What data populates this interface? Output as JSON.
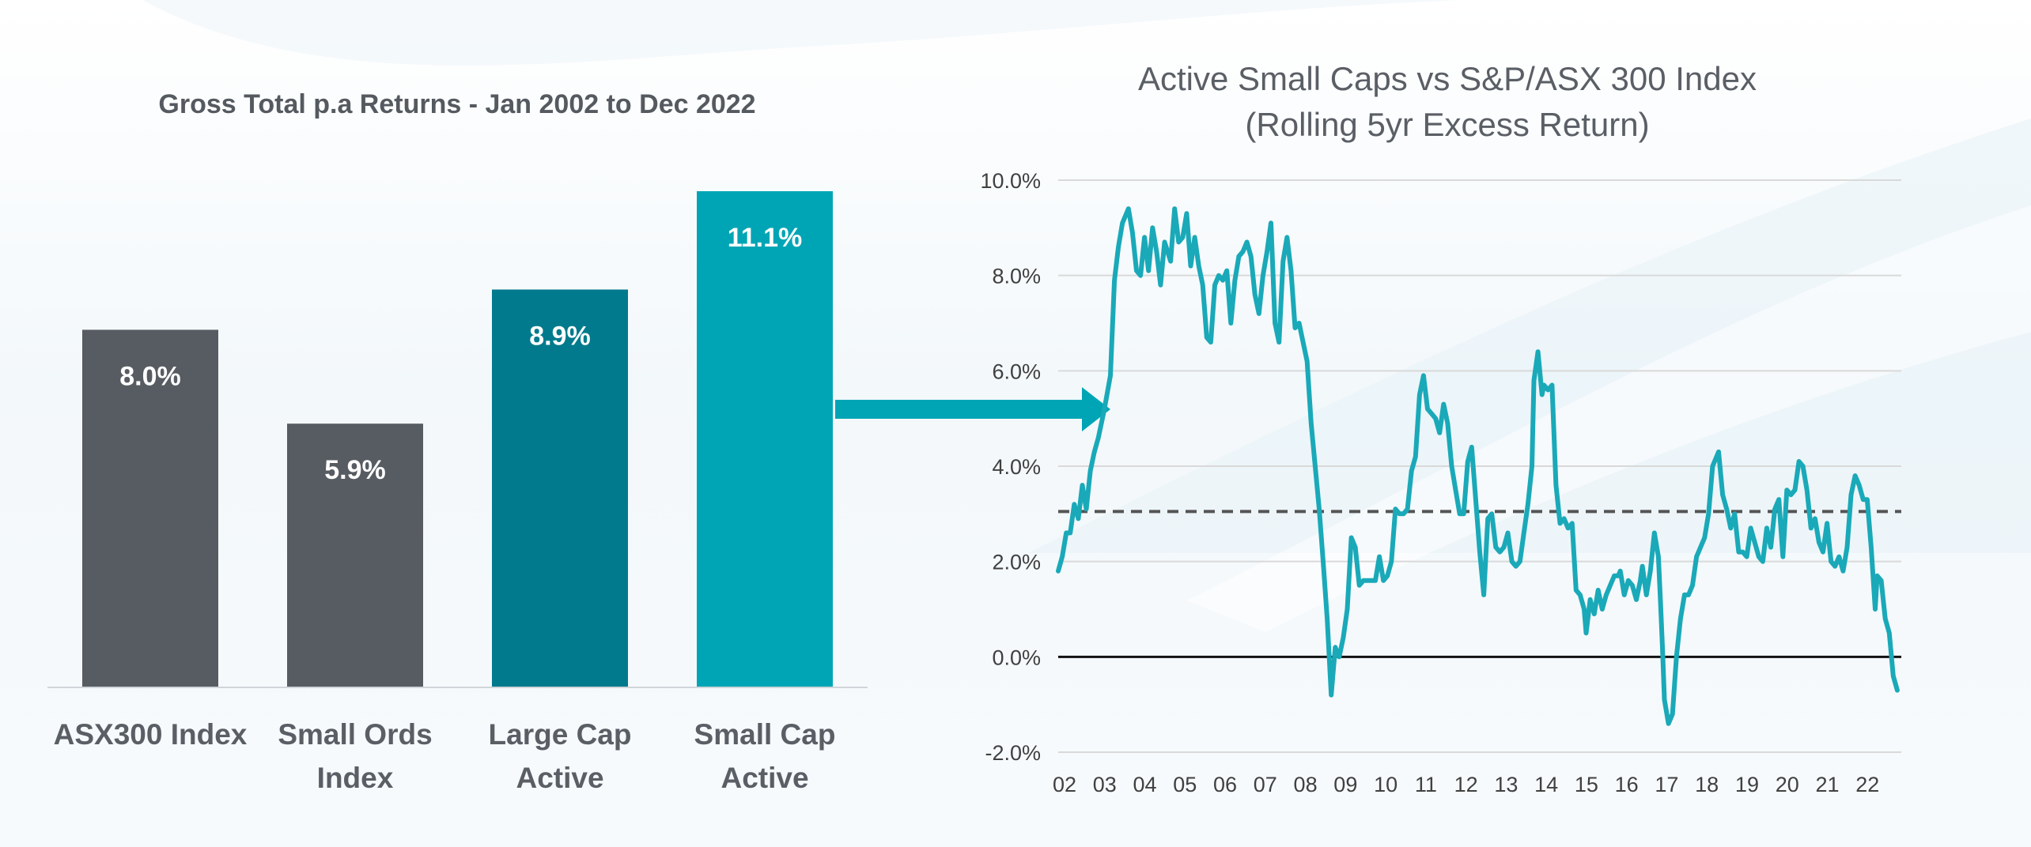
{
  "left_chart": {
    "title": "Gross Total p.a Returns - Jan 2002 to Dec 2022"
  },
  "right_chart": {
    "title_line1": "Active Small Caps vs S&P/ASX 300 Index",
    "title_line2": "(Rolling 5yr Excess Return)"
  },
  "colors": {
    "dark_grey": "#575b62",
    "dark_teal": "#007a8c",
    "teal": "#00a5b5",
    "line": "#1aa9b8",
    "dashed": "#555555",
    "axis_text": "#404040"
  },
  "chart_data": [
    {
      "type": "bar",
      "title": "Gross Total p.a Returns - Jan 2002 to Dec 2022",
      "categories": [
        [
          "ASX300 Index"
        ],
        [
          "Small Ords",
          "Index"
        ],
        [
          "Large Cap",
          "Active"
        ],
        [
          "Small Cap",
          "Active"
        ]
      ],
      "values": [
        8.0,
        5.9,
        8.9,
        11.1
      ],
      "labels": [
        "8.0%",
        "5.9%",
        "8.9%",
        "11.1%"
      ],
      "bar_colors": [
        "#575b62",
        "#575b62",
        "#007a8c",
        "#00a5b5"
      ],
      "ylim": [
        0,
        11.1
      ]
    },
    {
      "type": "line",
      "title": "Active Small Caps vs S&P/ASX 300 Index (Rolling 5yr Excess Return)",
      "x_ticks": [
        "02",
        "03",
        "04",
        "05",
        "06",
        "07",
        "08",
        "09",
        "10",
        "11",
        "12",
        "13",
        "14",
        "15",
        "16",
        "17",
        "18",
        "19",
        "20",
        "21",
        "22"
      ],
      "y_ticks": [
        -2,
        0,
        2,
        4,
        6,
        8,
        10
      ],
      "y_tick_labels": [
        "-2.0%",
        "0.0%",
        "2.0%",
        "4.0%",
        "6.0%",
        "8.0%",
        "10.0%"
      ],
      "ylim": [
        -2,
        10
      ],
      "xlim": [
        2002,
        2023
      ],
      "average_line": 3.05,
      "zero_line": 0,
      "grid": true,
      "series": [
        {
          "values": [
            [
              2002.0,
              1.8
            ],
            [
              2002.1,
              2.1
            ],
            [
              2002.2,
              2.6
            ],
            [
              2002.3,
              2.6
            ],
            [
              2002.4,
              3.2
            ],
            [
              2002.5,
              2.9
            ],
            [
              2002.6,
              3.6
            ],
            [
              2002.7,
              3.1
            ],
            [
              2002.8,
              3.9
            ],
            [
              2002.9,
              4.3
            ],
            [
              2003.0,
              4.6
            ],
            [
              2003.15,
              5.2
            ],
            [
              2003.3,
              5.9
            ],
            [
              2003.4,
              7.9
            ],
            [
              2003.5,
              8.6
            ],
            [
              2003.6,
              9.1
            ],
            [
              2003.75,
              9.4
            ],
            [
              2003.85,
              8.9
            ],
            [
              2003.95,
              8.1
            ],
            [
              2004.05,
              8.0
            ],
            [
              2004.15,
              8.8
            ],
            [
              2004.25,
              8.1
            ],
            [
              2004.35,
              9.0
            ],
            [
              2004.45,
              8.5
            ],
            [
              2004.55,
              7.8
            ],
            [
              2004.65,
              8.7
            ],
            [
              2004.8,
              8.3
            ],
            [
              2004.9,
              9.4
            ],
            [
              2005.0,
              8.7
            ],
            [
              2005.1,
              8.8
            ],
            [
              2005.2,
              9.3
            ],
            [
              2005.3,
              8.2
            ],
            [
              2005.4,
              8.8
            ],
            [
              2005.5,
              8.2
            ],
            [
              2005.6,
              7.8
            ],
            [
              2005.7,
              6.7
            ],
            [
              2005.8,
              6.6
            ],
            [
              2005.9,
              7.8
            ],
            [
              2006.0,
              8.0
            ],
            [
              2006.1,
              7.9
            ],
            [
              2006.2,
              8.1
            ],
            [
              2006.3,
              7.0
            ],
            [
              2006.4,
              7.9
            ],
            [
              2006.5,
              8.4
            ],
            [
              2006.6,
              8.5
            ],
            [
              2006.7,
              8.7
            ],
            [
              2006.8,
              8.4
            ],
            [
              2006.9,
              7.6
            ],
            [
              2007.0,
              7.2
            ],
            [
              2007.1,
              8.0
            ],
            [
              2007.2,
              8.5
            ],
            [
              2007.3,
              9.1
            ],
            [
              2007.4,
              7.0
            ],
            [
              2007.5,
              6.6
            ],
            [
              2007.6,
              8.3
            ],
            [
              2007.7,
              8.8
            ],
            [
              2007.8,
              8.1
            ],
            [
              2007.9,
              6.9
            ],
            [
              2008.0,
              7.0
            ],
            [
              2008.1,
              6.6
            ],
            [
              2008.2,
              6.2
            ],
            [
              2008.3,
              4.9
            ],
            [
              2008.4,
              4.0
            ],
            [
              2008.5,
              3.1
            ],
            [
              2008.6,
              2.0
            ],
            [
              2008.7,
              0.8
            ],
            [
              2008.8,
              -0.8
            ],
            [
              2008.9,
              0.2
            ],
            [
              2009.0,
              0.0
            ],
            [
              2009.1,
              0.4
            ],
            [
              2009.2,
              1.0
            ],
            [
              2009.3,
              2.5
            ],
            [
              2009.4,
              2.3
            ],
            [
              2009.5,
              1.5
            ],
            [
              2009.6,
              1.6
            ],
            [
              2009.7,
              1.6
            ],
            [
              2009.8,
              1.6
            ],
            [
              2009.9,
              1.6
            ],
            [
              2010.0,
              2.1
            ],
            [
              2010.1,
              1.6
            ],
            [
              2010.2,
              1.7
            ],
            [
              2010.3,
              2.0
            ],
            [
              2010.4,
              3.1
            ],
            [
              2010.5,
              3.0
            ],
            [
              2010.6,
              3.0
            ],
            [
              2010.7,
              3.1
            ],
            [
              2010.8,
              3.9
            ],
            [
              2010.9,
              4.2
            ],
            [
              2011.0,
              5.5
            ],
            [
              2011.1,
              5.9
            ],
            [
              2011.2,
              5.2
            ],
            [
              2011.3,
              5.1
            ],
            [
              2011.4,
              5.0
            ],
            [
              2011.5,
              4.7
            ],
            [
              2011.6,
              5.3
            ],
            [
              2011.7,
              4.9
            ],
            [
              2011.8,
              4.0
            ],
            [
              2011.9,
              3.5
            ],
            [
              2012.0,
              3.0
            ],
            [
              2012.1,
              3.0
            ],
            [
              2012.2,
              4.1
            ],
            [
              2012.3,
              4.4
            ],
            [
              2012.4,
              3.3
            ],
            [
              2012.5,
              2.2
            ],
            [
              2012.6,
              1.3
            ],
            [
              2012.7,
              2.9
            ],
            [
              2012.8,
              3.0
            ],
            [
              2012.9,
              2.3
            ],
            [
              2013.0,
              2.2
            ],
            [
              2013.1,
              2.3
            ],
            [
              2013.2,
              2.6
            ],
            [
              2013.3,
              2.0
            ],
            [
              2013.4,
              1.9
            ],
            [
              2013.5,
              2.0
            ],
            [
              2013.6,
              2.6
            ],
            [
              2013.7,
              3.2
            ],
            [
              2013.8,
              4.0
            ],
            [
              2013.85,
              5.8
            ],
            [
              2013.95,
              6.4
            ],
            [
              2014.05,
              5.5
            ],
            [
              2014.1,
              5.7
            ],
            [
              2014.2,
              5.6
            ],
            [
              2014.3,
              5.7
            ],
            [
              2014.4,
              3.6
            ],
            [
              2014.5,
              2.8
            ],
            [
              2014.6,
              2.9
            ],
            [
              2014.7,
              2.7
            ],
            [
              2014.8,
              2.8
            ],
            [
              2014.9,
              1.4
            ],
            [
              2015.0,
              1.3
            ],
            [
              2015.1,
              1.0
            ],
            [
              2015.15,
              0.5
            ],
            [
              2015.25,
              1.2
            ],
            [
              2015.35,
              0.9
            ],
            [
              2015.45,
              1.4
            ],
            [
              2015.55,
              1.0
            ],
            [
              2015.65,
              1.3
            ],
            [
              2015.75,
              1.5
            ],
            [
              2015.85,
              1.7
            ],
            [
              2015.95,
              1.7
            ],
            [
              2016.0,
              1.8
            ],
            [
              2016.1,
              1.3
            ],
            [
              2016.2,
              1.6
            ],
            [
              2016.3,
              1.5
            ],
            [
              2016.4,
              1.2
            ],
            [
              2016.5,
              1.6
            ],
            [
              2016.55,
              1.9
            ],
            [
              2016.65,
              1.3
            ],
            [
              2016.75,
              1.8
            ],
            [
              2016.85,
              2.6
            ],
            [
              2016.95,
              2.1
            ],
            [
              2017.0,
              1.2
            ],
            [
              2017.05,
              0.2
            ],
            [
              2017.1,
              -0.9
            ],
            [
              2017.2,
              -1.4
            ],
            [
              2017.3,
              -1.2
            ],
            [
              2017.4,
              0.0
            ],
            [
              2017.5,
              0.8
            ],
            [
              2017.6,
              1.3
            ],
            [
              2017.7,
              1.3
            ],
            [
              2017.8,
              1.5
            ],
            [
              2017.9,
              2.1
            ],
            [
              2018.0,
              2.3
            ],
            [
              2018.1,
              2.5
            ],
            [
              2018.2,
              3.0
            ],
            [
              2018.3,
              4.0
            ],
            [
              2018.4,
              4.2
            ],
            [
              2018.45,
              4.3
            ],
            [
              2018.55,
              3.4
            ],
            [
              2018.65,
              3.1
            ],
            [
              2018.75,
              2.7
            ],
            [
              2018.85,
              3.0
            ],
            [
              2018.95,
              2.2
            ],
            [
              2019.05,
              2.2
            ],
            [
              2019.15,
              2.1
            ],
            [
              2019.25,
              2.7
            ],
            [
              2019.35,
              2.4
            ],
            [
              2019.45,
              2.1
            ],
            [
              2019.55,
              2.0
            ],
            [
              2019.65,
              2.7
            ],
            [
              2019.75,
              2.3
            ],
            [
              2019.85,
              3.1
            ],
            [
              2019.95,
              3.3
            ],
            [
              2020.05,
              2.1
            ],
            [
              2020.15,
              3.5
            ],
            [
              2020.25,
              3.4
            ],
            [
              2020.35,
              3.5
            ],
            [
              2020.45,
              4.1
            ],
            [
              2020.55,
              4.0
            ],
            [
              2020.65,
              3.5
            ],
            [
              2020.75,
              2.7
            ],
            [
              2020.85,
              2.9
            ],
            [
              2020.95,
              2.4
            ],
            [
              2021.05,
              2.2
            ],
            [
              2021.15,
              2.8
            ],
            [
              2021.25,
              2.0
            ],
            [
              2021.35,
              1.9
            ],
            [
              2021.45,
              2.1
            ],
            [
              2021.55,
              1.8
            ],
            [
              2021.65,
              2.3
            ],
            [
              2021.75,
              3.4
            ],
            [
              2021.85,
              3.8
            ],
            [
              2021.95,
              3.6
            ],
            [
              2022.05,
              3.3
            ],
            [
              2022.15,
              3.3
            ],
            [
              2022.25,
              2.3
            ],
            [
              2022.35,
              1.0
            ],
            [
              2022.4,
              1.7
            ],
            [
              2022.5,
              1.6
            ],
            [
              2022.6,
              0.8
            ],
            [
              2022.7,
              0.5
            ],
            [
              2022.8,
              -0.4
            ],
            [
              2022.9,
              -0.7
            ]
          ]
        }
      ]
    }
  ]
}
